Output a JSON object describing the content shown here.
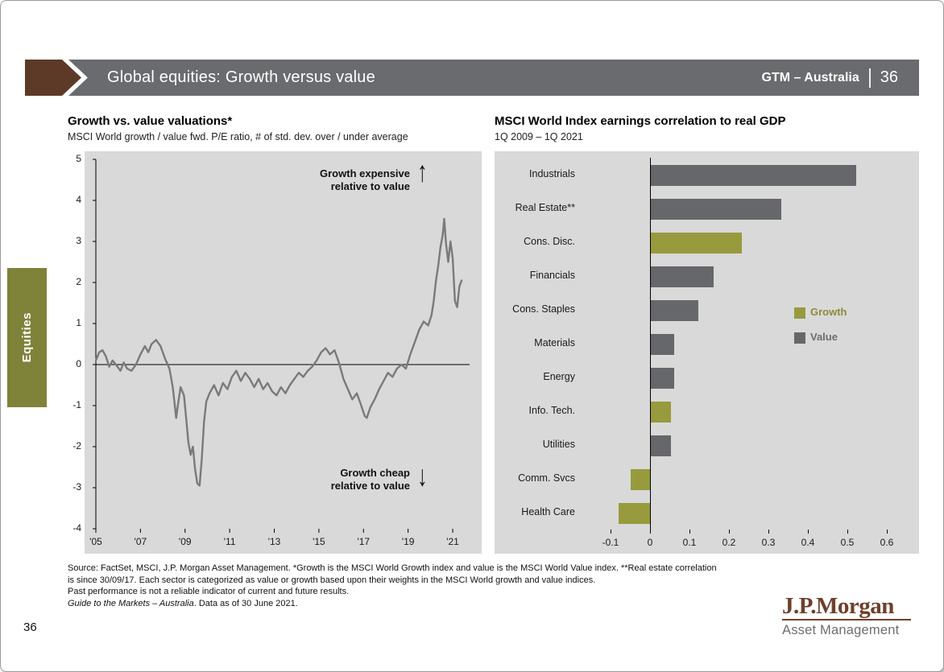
{
  "header": {
    "title": "Global equities: Growth versus value",
    "gtm_label": "GTM – Australia",
    "page_number": "36"
  },
  "side_tab": {
    "label": "Equities"
  },
  "colors": {
    "header_bar": "#6a6b6e",
    "accent_brown": "#5d3a28",
    "equities_tab_green": "#7f8239",
    "growth_green": "#979b3d",
    "value_gray": "#66676a",
    "chart_background": "#d9d9d9",
    "line_series_gray": "#7a7a7a",
    "logo_brown": "#6f3f2b"
  },
  "chart_data": [
    {
      "type": "line",
      "title": "Growth vs. value valuations*",
      "subtitle": "MSCI World growth / value fwd. P/E ratio, # of std. dev. over / under average",
      "ylim": [
        -4,
        5
      ],
      "yticks": [
        5,
        4,
        3,
        2,
        1,
        0,
        -1,
        -2,
        -3,
        -4
      ],
      "xticks": [
        {
          "value": 2005,
          "label": "'05"
        },
        {
          "value": 2007,
          "label": "'07"
        },
        {
          "value": 2009,
          "label": "'09"
        },
        {
          "value": 2011,
          "label": "'11"
        },
        {
          "value": 2013,
          "label": "'13"
        },
        {
          "value": 2015,
          "label": "'15"
        },
        {
          "value": 2017,
          "label": "'17"
        },
        {
          "value": 2019,
          "label": "'19"
        },
        {
          "value": 2021,
          "label": "'21"
        }
      ],
      "zero_line": true,
      "grid": false,
      "annotations": [
        {
          "lines": [
            "Growth expensive",
            "relative to value"
          ],
          "arrow": "↑",
          "position": "upper-right"
        },
        {
          "lines": [
            "Growth cheap",
            "relative to value"
          ],
          "arrow": "↓",
          "position": "lower-right"
        }
      ],
      "series": [
        {
          "name": "MSCI World growth / value fwd. P/E ratio, std. dev. over / under average",
          "color": "#7a7a7a",
          "points": [
            [
              2005.0,
              0.1
            ],
            [
              2005.15,
              0.3
            ],
            [
              2005.3,
              0.35
            ],
            [
              2005.45,
              0.2
            ],
            [
              2005.6,
              -0.05
            ],
            [
              2005.75,
              0.1
            ],
            [
              2005.9,
              0.0
            ],
            [
              2006.1,
              -0.15
            ],
            [
              2006.25,
              0.05
            ],
            [
              2006.4,
              -0.1
            ],
            [
              2006.6,
              -0.15
            ],
            [
              2006.8,
              0.0
            ],
            [
              2007.0,
              0.25
            ],
            [
              2007.2,
              0.45
            ],
            [
              2007.35,
              0.3
            ],
            [
              2007.5,
              0.5
            ],
            [
              2007.7,
              0.6
            ],
            [
              2007.9,
              0.45
            ],
            [
              2008.1,
              0.15
            ],
            [
              2008.3,
              -0.1
            ],
            [
              2008.45,
              -0.55
            ],
            [
              2008.6,
              -1.3
            ],
            [
              2008.7,
              -0.9
            ],
            [
              2008.8,
              -0.55
            ],
            [
              2008.95,
              -0.75
            ],
            [
              2009.05,
              -1.3
            ],
            [
              2009.15,
              -1.9
            ],
            [
              2009.25,
              -2.2
            ],
            [
              2009.35,
              -2.0
            ],
            [
              2009.45,
              -2.55
            ],
            [
              2009.55,
              -2.9
            ],
            [
              2009.65,
              -2.95
            ],
            [
              2009.75,
              -2.3
            ],
            [
              2009.85,
              -1.4
            ],
            [
              2009.95,
              -0.9
            ],
            [
              2010.1,
              -0.7
            ],
            [
              2010.3,
              -0.5
            ],
            [
              2010.5,
              -0.75
            ],
            [
              2010.7,
              -0.45
            ],
            [
              2010.9,
              -0.6
            ],
            [
              2011.1,
              -0.3
            ],
            [
              2011.3,
              -0.15
            ],
            [
              2011.5,
              -0.4
            ],
            [
              2011.7,
              -0.2
            ],
            [
              2011.9,
              -0.35
            ],
            [
              2012.1,
              -0.55
            ],
            [
              2012.3,
              -0.35
            ],
            [
              2012.5,
              -0.6
            ],
            [
              2012.7,
              -0.45
            ],
            [
              2012.9,
              -0.65
            ],
            [
              2013.1,
              -0.75
            ],
            [
              2013.3,
              -0.55
            ],
            [
              2013.5,
              -0.7
            ],
            [
              2013.7,
              -0.5
            ],
            [
              2013.9,
              -0.35
            ],
            [
              2014.1,
              -0.2
            ],
            [
              2014.3,
              -0.3
            ],
            [
              2014.5,
              -0.15
            ],
            [
              2014.7,
              -0.05
            ],
            [
              2014.9,
              0.1
            ],
            [
              2015.1,
              0.3
            ],
            [
              2015.3,
              0.4
            ],
            [
              2015.5,
              0.25
            ],
            [
              2015.7,
              0.35
            ],
            [
              2015.9,
              0.05
            ],
            [
              2016.1,
              -0.35
            ],
            [
              2016.3,
              -0.6
            ],
            [
              2016.5,
              -0.85
            ],
            [
              2016.7,
              -0.7
            ],
            [
              2016.9,
              -1.0
            ],
            [
              2017.05,
              -1.25
            ],
            [
              2017.15,
              -1.3
            ],
            [
              2017.3,
              -1.05
            ],
            [
              2017.5,
              -0.85
            ],
            [
              2017.7,
              -0.6
            ],
            [
              2017.9,
              -0.4
            ],
            [
              2018.1,
              -0.2
            ],
            [
              2018.3,
              -0.3
            ],
            [
              2018.5,
              -0.1
            ],
            [
              2018.7,
              0.0
            ],
            [
              2018.9,
              -0.1
            ],
            [
              2019.1,
              0.25
            ],
            [
              2019.3,
              0.55
            ],
            [
              2019.5,
              0.85
            ],
            [
              2019.7,
              1.05
            ],
            [
              2019.9,
              0.95
            ],
            [
              2020.05,
              1.2
            ],
            [
              2020.15,
              1.55
            ],
            [
              2020.25,
              2.05
            ],
            [
              2020.35,
              2.4
            ],
            [
              2020.45,
              2.85
            ],
            [
              2020.55,
              3.15
            ],
            [
              2020.62,
              3.55
            ],
            [
              2020.7,
              2.95
            ],
            [
              2020.8,
              2.5
            ],
            [
              2020.9,
              3.0
            ],
            [
              2021.0,
              2.6
            ],
            [
              2021.1,
              1.55
            ],
            [
              2021.2,
              1.4
            ],
            [
              2021.3,
              1.9
            ],
            [
              2021.4,
              2.05
            ]
          ]
        }
      ]
    },
    {
      "type": "bar",
      "orientation": "horizontal",
      "title": "MSCI World Index earnings correlation to real GDP",
      "subtitle": "1Q 2009 – 1Q 2021",
      "xlim": [
        -0.1,
        0.6
      ],
      "xticks": [
        {
          "value": -0.1,
          "label": "-0.1"
        },
        {
          "value": 0,
          "label": "0"
        },
        {
          "value": 0.1,
          "label": "0.1"
        },
        {
          "value": 0.2,
          "label": "0.2"
        },
        {
          "value": 0.3,
          "label": "0.3"
        },
        {
          "value": 0.4,
          "label": "0.4"
        },
        {
          "value": 0.5,
          "label": "0.5"
        },
        {
          "value": 0.6,
          "label": "0.6"
        }
      ],
      "categories": [
        "Industrials",
        "Real Estate**",
        "Cons. Disc.",
        "Financials",
        "Cons. Staples",
        "Materials",
        "Energy",
        "Info. Tech.",
        "Utilities",
        "Comm. Svcs",
        "Health Care"
      ],
      "values": [
        0.52,
        0.33,
        0.23,
        0.16,
        0.12,
        0.06,
        0.06,
        0.05,
        0.05,
        -0.05,
        -0.08
      ],
      "groups": [
        "Value",
        "Value",
        "Growth",
        "Value",
        "Value",
        "Value",
        "Value",
        "Growth",
        "Value",
        "Growth",
        "Growth"
      ],
      "legend": [
        {
          "label": "Growth",
          "color": "#979b3d",
          "text_color": "#8a8d3a"
        },
        {
          "label": "Value",
          "color": "#66676a",
          "text_color": "#6d6e71"
        }
      ],
      "legend_position": "middle-right"
    }
  ],
  "footer": {
    "lines": [
      "Source: FactSet, MSCI, J.P. Morgan Asset Management. *Growth is the MSCI World Growth index and value is the MSCI World Value index. **Real estate correlation",
      "is since 30/09/17. Each sector is categorized as value or growth based upon their weights in the MSCI World growth and value indices.",
      "Past performance is not a reliable indicator of current and future results."
    ],
    "last_line_italic": "Guide to the Markets – Australia",
    "last_line_rest": ". Data as of 30 June 2021."
  },
  "page_number": "36",
  "logo": {
    "name": "J.P.Morgan",
    "subtitle": "Asset Management"
  }
}
